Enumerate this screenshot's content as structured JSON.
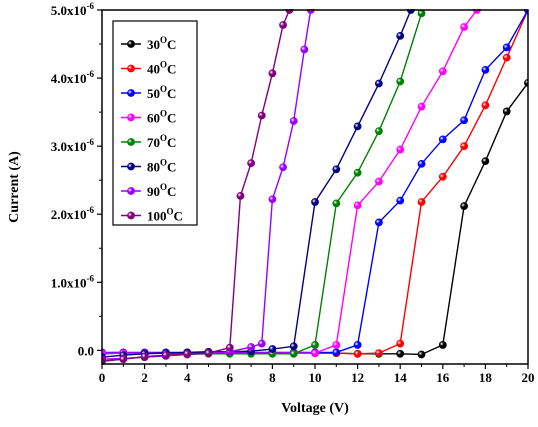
{
  "chart_data": {
    "type": "line",
    "xlabel": "Voltage (V)",
    "ylabel": "Current (A)",
    "xlim": [
      0,
      20
    ],
    "ylim": [
      -2e-07,
      5e-06
    ],
    "x_ticks": [
      0,
      2,
      4,
      6,
      8,
      10,
      12,
      14,
      16,
      18,
      20
    ],
    "x_tick_labels": [
      "0",
      "2",
      "4",
      "6",
      "8",
      "10",
      "12",
      "14",
      "16",
      "18",
      "20"
    ],
    "y_ticks": [
      0,
      1e-06,
      2e-06,
      3e-06,
      4e-06,
      5e-06
    ],
    "y_tick_labels": [
      {
        "mantissa": "0.0",
        "exp": ""
      },
      {
        "mantissa": "1.0x10",
        "exp": "-6"
      },
      {
        "mantissa": "2.0x10",
        "exp": "-6"
      },
      {
        "mantissa": "3.0x10",
        "exp": "-6"
      },
      {
        "mantissa": "4.0x10",
        "exp": "-6"
      },
      {
        "mantissa": "5.0x10",
        "exp": "-6"
      }
    ],
    "grid": false,
    "legend_position": "top-left",
    "series": [
      {
        "name": "30",
        "unit": "C",
        "color": "#000000",
        "x": [
          0,
          1,
          2,
          3,
          4,
          5,
          6,
          7,
          8,
          9,
          10,
          11,
          12,
          13,
          14,
          15,
          16,
          17,
          18,
          19,
          20
        ],
        "y": [
          -5e-08,
          -4e-08,
          -4e-08,
          -4e-08,
          -4e-08,
          -4e-08,
          -4e-08,
          -4e-08,
          -4e-08,
          -4e-08,
          -4e-08,
          -4e-08,
          -5e-08,
          -5e-08,
          -5e-08,
          -6e-08,
          8e-08,
          2.12e-06,
          2.78e-06,
          3.51e-06,
          3.93e-06
        ]
      },
      {
        "name": "40",
        "unit": "C",
        "color": "#ff0000",
        "x": [
          0,
          1,
          2,
          3,
          4,
          5,
          6,
          7,
          8,
          9,
          10,
          11,
          12,
          13,
          14,
          15,
          16,
          17,
          18,
          19,
          20
        ],
        "y": [
          -4e-08,
          -4e-08,
          -4e-08,
          -4e-08,
          -4e-08,
          -4e-08,
          -4e-08,
          -4e-08,
          -4e-08,
          -4e-08,
          -4e-08,
          -4e-08,
          -5e-08,
          -4e-08,
          1e-07,
          2.18e-06,
          2.55e-06,
          3e-06,
          3.6e-06,
          4.3e-06,
          5e-06
        ]
      },
      {
        "name": "50",
        "unit": "C",
        "color": "#0000ff",
        "x": [
          0,
          1,
          2,
          3,
          4,
          5,
          6,
          7,
          8,
          9,
          10,
          11,
          12,
          13,
          14,
          15,
          16,
          17,
          18,
          19,
          20
        ],
        "y": [
          -3e-08,
          -3e-08,
          -3e-08,
          -3e-08,
          -3e-08,
          -3e-08,
          -3e-08,
          -3e-08,
          -3e-08,
          -3e-08,
          -3e-08,
          -3e-08,
          8e-08,
          1.88e-06,
          2.2e-06,
          2.74e-06,
          3.1e-06,
          3.38e-06,
          4.12e-06,
          4.45e-06,
          5e-06
        ]
      },
      {
        "name": "60",
        "unit": "C",
        "color": "#ff00ff",
        "x": [
          0,
          1,
          2,
          3,
          4,
          5,
          6,
          7,
          8,
          9,
          10,
          11,
          12,
          13,
          14,
          15,
          16,
          17,
          17.6
        ],
        "y": [
          -4e-08,
          -4e-08,
          -4e-08,
          -4e-08,
          -4e-08,
          -4e-08,
          -4e-08,
          -4e-08,
          -4e-08,
          -4e-08,
          -4e-08,
          8e-08,
          2.13e-06,
          2.48e-06,
          2.95e-06,
          3.58e-06,
          4.1e-06,
          4.75e-06,
          5e-06
        ]
      },
      {
        "name": "70",
        "unit": "C",
        "color": "#008000",
        "x": [
          0,
          1,
          2,
          3,
          4,
          5,
          6,
          7,
          8,
          9,
          10,
          11,
          12,
          13,
          14,
          15
        ],
        "y": [
          -1.6e-07,
          -1.2e-07,
          -1e-07,
          -8e-08,
          -6e-08,
          -5e-08,
          -5e-08,
          -5e-08,
          -5e-08,
          -5e-08,
          8e-08,
          2.16e-06,
          2.61e-06,
          3.22e-06,
          3.95e-06,
          4.95e-06
        ]
      },
      {
        "name": "80",
        "unit": "C",
        "color": "#000080",
        "x": [
          0,
          1,
          2,
          3,
          4,
          5,
          6,
          7,
          8,
          9,
          10,
          11,
          12,
          13,
          14,
          14.5
        ],
        "y": [
          -1e-07,
          -7e-08,
          -5e-08,
          -4e-08,
          -3e-08,
          -2e-08,
          -2e-08,
          -1e-08,
          2e-08,
          6e-08,
          2.18e-06,
          2.66e-06,
          3.29e-06,
          3.92e-06,
          4.62e-06,
          5e-06
        ]
      },
      {
        "name": "90",
        "unit": "C",
        "color": "#9900ff",
        "x": [
          0,
          1,
          2,
          3,
          4,
          5,
          6,
          7,
          7.5,
          8,
          8.5,
          9,
          9.5,
          9.8
        ],
        "y": [
          -1.3e-07,
          -1.2e-07,
          -1e-07,
          -8e-08,
          -6e-08,
          -4e-08,
          -2e-08,
          5e-08,
          1e-07,
          2.22e-06,
          2.69e-06,
          3.37e-06,
          4.42e-06,
          5e-06
        ]
      },
      {
        "name": "100",
        "unit": "C",
        "color": "#800080",
        "x": [
          0,
          1,
          2,
          3,
          4,
          5,
          6,
          6.5,
          7,
          7.5,
          8,
          8.5,
          8.8
        ],
        "y": [
          -1.6e-07,
          -1.3e-07,
          -9e-08,
          -7e-08,
          -5e-08,
          -4e-08,
          4e-08,
          2.27e-06,
          2.75e-06,
          3.45e-06,
          4.07e-06,
          4.78e-06,
          5e-06
        ]
      }
    ]
  }
}
